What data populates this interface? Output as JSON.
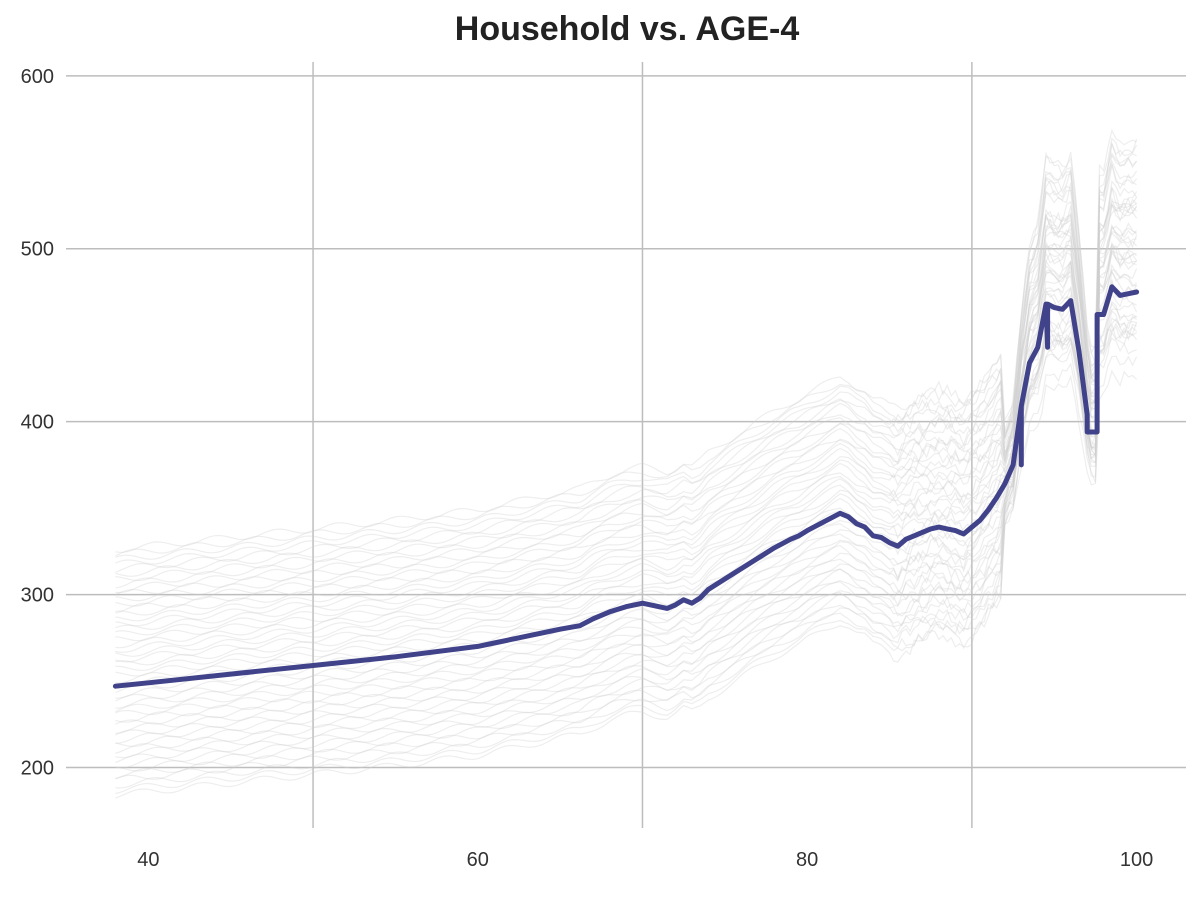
{
  "chart_data": {
    "type": "line",
    "title": "Household vs. AGE-4",
    "xlabel": "",
    "ylabel": "",
    "xlim": [
      35,
      103
    ],
    "ylim": [
      165,
      608
    ],
    "x_ticks": [
      40,
      60,
      80,
      100
    ],
    "y_ticks": [
      200,
      300,
      400,
      500,
      600
    ],
    "x_tick_labels": [
      "40",
      "60",
      "80",
      "100"
    ],
    "y_tick_labels": [
      "200",
      "300",
      "400",
      "500",
      "600"
    ],
    "grid": true,
    "series": [
      {
        "role": "average",
        "color": "#40428a",
        "x": [
          38,
          40,
          45,
          50,
          55,
          60,
          61,
          63,
          65,
          66.2,
          67,
          68,
          69,
          70,
          71,
          71.5,
          72,
          72.5,
          73,
          73.5,
          74,
          75,
          76,
          77,
          78,
          79,
          79.5,
          80,
          81,
          82,
          82.5,
          83,
          83.5,
          84,
          84.5,
          85,
          85.5,
          86,
          86.5,
          87,
          87.5,
          88,
          88.5,
          89,
          89.5,
          90,
          90.5,
          91,
          91.5,
          92,
          92.5,
          93,
          93.5,
          94,
          94.5,
          95,
          95.5,
          96,
          96.5,
          97,
          97.5,
          98,
          98.5,
          99,
          99.5,
          100
        ],
        "y": [
          247,
          249,
          254,
          259,
          264,
          270,
          272,
          276,
          280,
          282,
          286,
          290,
          293,
          295,
          293,
          292,
          294,
          297,
          295,
          298,
          303,
          309,
          315,
          321,
          327,
          332,
          334,
          337,
          342,
          347,
          345,
          341,
          339,
          334,
          333,
          330,
          328,
          332,
          334,
          336,
          338,
          339,
          338,
          337,
          335,
          339,
          343,
          349,
          356,
          364,
          375,
          409,
          434,
          443,
          468,
          466,
          465,
          470,
          441,
          404,
          394,
          462,
          478,
          473,
          474,
          475
        ],
        "steps": [
          {
            "x": 93.0,
            "from": 375,
            "to": 409
          },
          {
            "x": 94.6,
            "from": 443,
            "to": 468
          },
          {
            "x": 97.0,
            "from": 404,
            "to": 394
          },
          {
            "x": 97.6,
            "from": 394,
            "to": 462
          }
        ]
      }
    ],
    "background_lines": {
      "count": 50,
      "color": "#cfcfcf",
      "description": "individual conditional expectation curves",
      "start_range": [
        184,
        326
      ]
    }
  }
}
